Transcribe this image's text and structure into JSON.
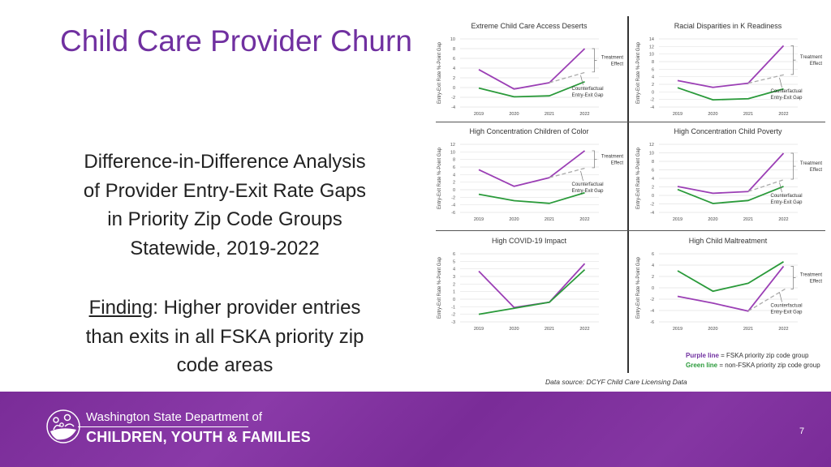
{
  "slide": {
    "title": "Child Care Provider Churn",
    "subtitle_lines": [
      "Difference-in-Difference Analysis",
      "of Provider Entry-Exit Rate Gaps",
      "in Priority Zip Code Groups",
      "Statewide, 2019-2022"
    ],
    "finding_label": "Finding",
    "finding_rest": ": Higher provider entries",
    "finding_lines": [
      "than exits in all FSKA priority zip",
      "code areas"
    ],
    "legend": {
      "purple_label": "Purple line",
      "purple_text": " = FSKA priority zip code group",
      "green_label": "Green line",
      "green_text": " = non-FSKA priority zip code group"
    },
    "source": "Data source: DCYF Child Care Licensing Data",
    "page_number": "7"
  },
  "footer": {
    "logo_top": "Washington State Department of",
    "logo_bottom": "CHILDREN, YOUTH & FAMILIES"
  },
  "colors": {
    "purple": "#9b3fb5",
    "green": "#2a9a3a",
    "title": "#7030a0",
    "footer": "#7a2c98",
    "counterfactual": "#aaaaaa"
  },
  "chart_data": [
    {
      "type": "line",
      "title": "Extreme Child Care Access Deserts",
      "ylabel": "Entry-Exit Rate %-Point Gap",
      "categories": [
        "2019",
        "2020",
        "2021",
        "2022"
      ],
      "ylim": [
        -4,
        10
      ],
      "ystep": 2,
      "grid": true,
      "series": [
        {
          "color": "purple",
          "values": [
            3.7,
            -0.3,
            1.0,
            8.0
          ]
        },
        {
          "color": "green",
          "values": [
            -0.1,
            -1.9,
            -1.7,
            1.2
          ]
        }
      ],
      "counterfactual_2022": 3.2,
      "annotations": [
        "Treatment Effect",
        "Counterfactual Entry-Exit Gap"
      ]
    },
    {
      "type": "line",
      "title": "Racial Disparities in K Readiness",
      "ylabel": "Entry-Exit Rate %-Point Gap",
      "categories": [
        "2019",
        "2020",
        "2021",
        "2022"
      ],
      "ylim": [
        -4,
        14
      ],
      "ystep": 2,
      "grid": true,
      "series": [
        {
          "color": "purple",
          "values": [
            3.0,
            1.2,
            2.3,
            12.2
          ]
        },
        {
          "color": "green",
          "values": [
            1.1,
            -2.1,
            -1.8,
            0.8
          ]
        }
      ],
      "counterfactual_2022": 4.6,
      "annotations": [
        "Treatment Effect",
        "Counterfactual Entry-Exit Gap"
      ]
    },
    {
      "type": "line",
      "title": "High Concentration Children of Color",
      "ylabel": "Entry-Exit Rate %-Point Gap",
      "categories": [
        "2019",
        "2020",
        "2021",
        "2022"
      ],
      "ylim": [
        -6,
        12
      ],
      "ystep": 2,
      "grid": true,
      "series": [
        {
          "color": "purple",
          "values": [
            5.3,
            0.9,
            3.2,
            10.3
          ]
        },
        {
          "color": "green",
          "values": [
            -1.2,
            -2.9,
            -3.6,
            -0.8
          ]
        }
      ],
      "counterfactual_2022": 5.8,
      "annotations": [
        "Treatment Effect",
        "Counterfactual Entry-Exit Gap"
      ]
    },
    {
      "type": "line",
      "title": "High Concentration Child Poverty",
      "ylabel": "Entry-Exit Rate %-Point Gap",
      "categories": [
        "2019",
        "2020",
        "2021",
        "2022"
      ],
      "ylim": [
        -4,
        12
      ],
      "ystep": 2,
      "grid": true,
      "series": [
        {
          "color": "purple",
          "values": [
            2.1,
            0.5,
            0.9,
            9.9
          ]
        },
        {
          "color": "green",
          "values": [
            1.4,
            -1.9,
            -1.2,
            2.1
          ]
        }
      ],
      "counterfactual_2022": 3.8,
      "annotations": [
        "Treatment Effect",
        "Counterfactual Entry-Exit Gap"
      ]
    },
    {
      "type": "line",
      "title": "High COVID-19 Impact",
      "ylabel": "Entry-Exit Rate %-Point Gap",
      "categories": [
        "2019",
        "2020",
        "2021",
        "2022"
      ],
      "ylim": [
        -3,
        6
      ],
      "ystep": 1,
      "grid": true,
      "series": [
        {
          "color": "purple",
          "values": [
            3.7,
            -1.1,
            -0.4,
            4.7
          ]
        },
        {
          "color": "green",
          "values": [
            -2.0,
            -1.2,
            -0.4,
            3.9
          ]
        }
      ],
      "counterfactual_2022": null,
      "annotations": []
    },
    {
      "type": "line",
      "title": "High Child Maltreatment",
      "ylabel": "Entry-Exit Rate %-Point Gap",
      "categories": [
        "2019",
        "2020",
        "2021",
        "2022"
      ],
      "ylim": [
        -6,
        6
      ],
      "ystep": 2,
      "grid": true,
      "series": [
        {
          "color": "green",
          "values": [
            3.0,
            -0.6,
            0.8,
            4.6
          ]
        },
        {
          "color": "purple",
          "values": [
            -1.5,
            -2.7,
            -4.1,
            3.8
          ]
        }
      ],
      "counterfactual_2022": -0.2,
      "annotations": [
        "Treatment Effect",
        "Counterfactual Entry-Exit Gap"
      ]
    }
  ]
}
